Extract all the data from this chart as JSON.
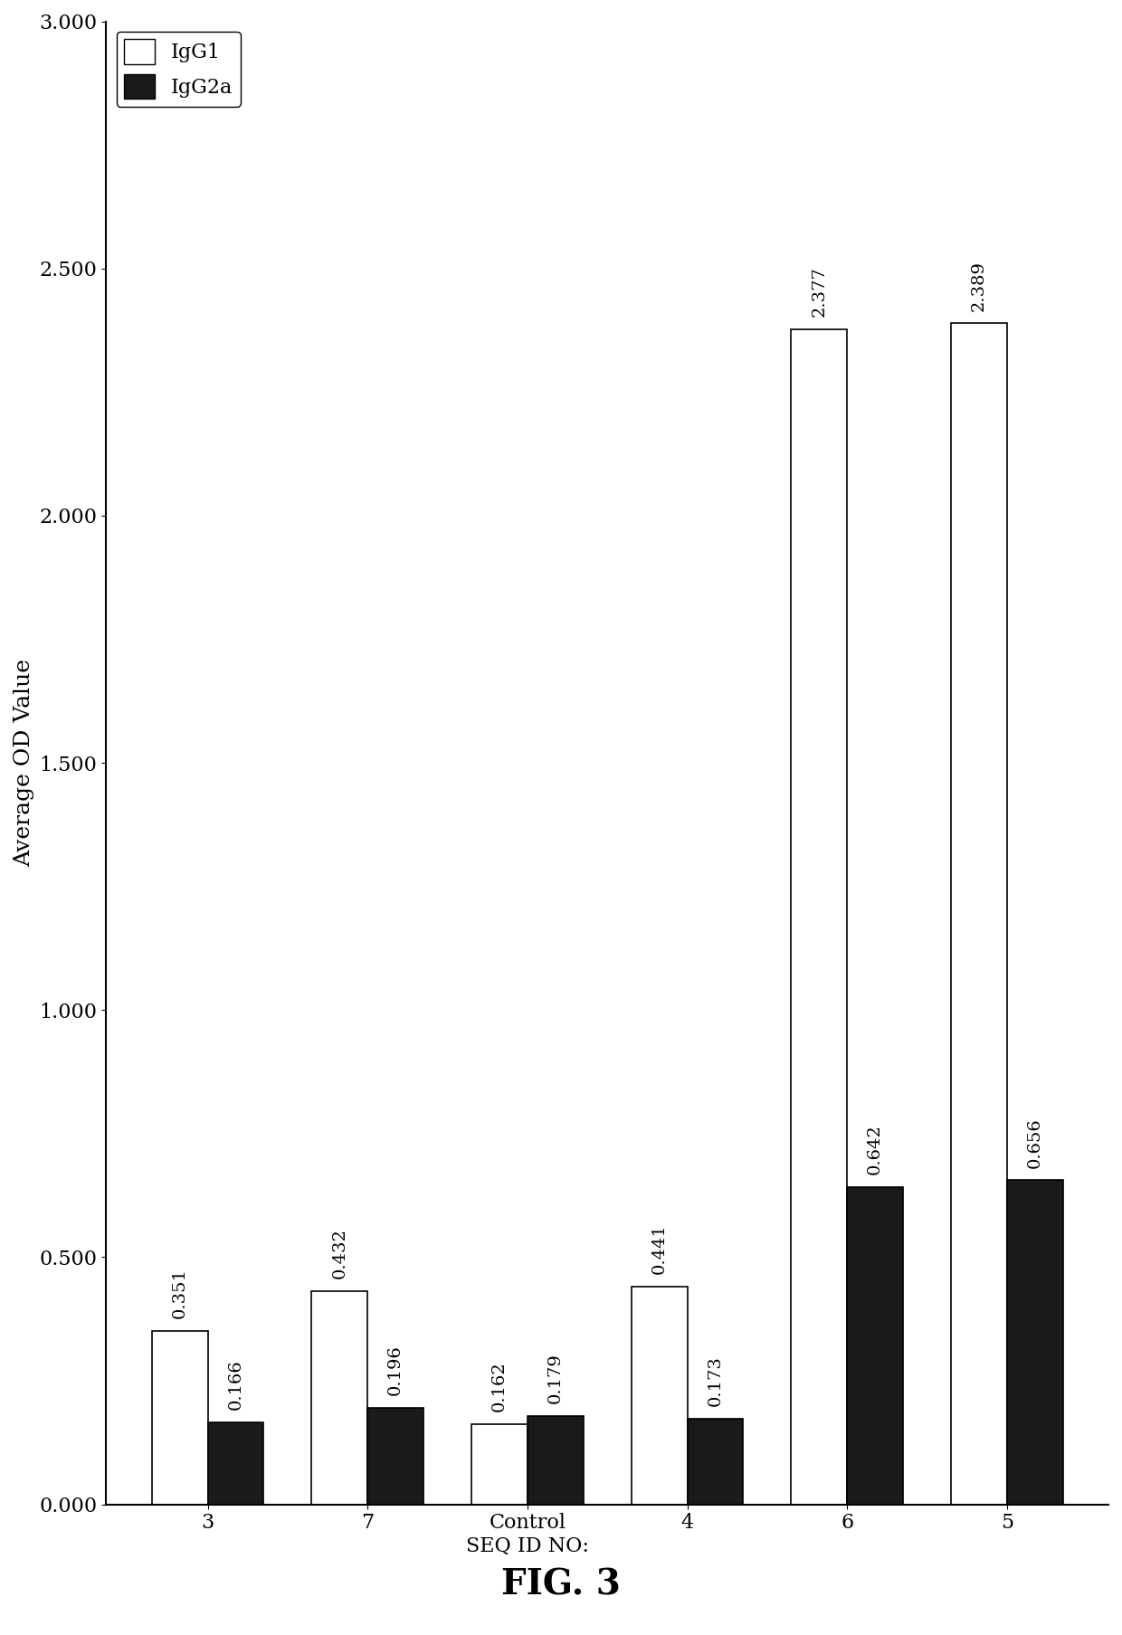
{
  "categories": [
    "3",
    "7",
    "Control\nSEQ ID NO:",
    "4",
    "6",
    "5"
  ],
  "IgG1_values": [
    0.351,
    0.432,
    0.162,
    0.441,
    2.377,
    2.389
  ],
  "IgG2a_values": [
    0.166,
    0.196,
    0.179,
    0.173,
    0.642,
    0.656
  ],
  "IgG1_color": "#ffffff",
  "IgG2a_color": "#1a1a1a",
  "bar_edge_color": "#000000",
  "ylabel": "Average OD Value",
  "xlabel": "SEQ ID NO:",
  "title": "FIG. 3",
  "ylim": [
    0.0,
    3.0
  ],
  "yticks": [
    0.0,
    0.5,
    1.0,
    1.5,
    2.0,
    2.5,
    3.0
  ],
  "ytick_labels": [
    "0.000",
    "0.500",
    "1.000",
    "1.500",
    "2.000",
    "2.500",
    "3.000"
  ],
  "legend_labels": [
    "IgG1",
    "IgG2a"
  ],
  "bar_width": 0.35,
  "figure_width": 12.4,
  "figure_height": 18.07,
  "dpi": 100,
  "background_color": "#ffffff",
  "font_size_title": 28,
  "font_size_axis_label": 18,
  "font_size_tick": 16,
  "font_size_bar_label": 14,
  "font_size_legend": 16
}
